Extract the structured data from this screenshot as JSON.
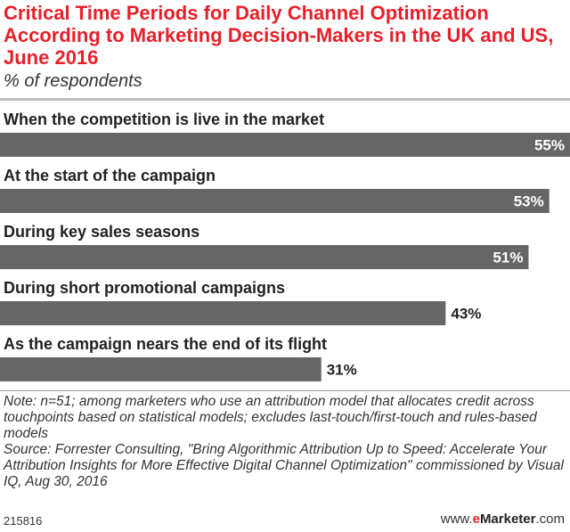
{
  "chart_data": {
    "type": "bar",
    "orientation": "horizontal",
    "title": "Critical Time Periods for Daily Channel Optimization According to Marketing Decision-Makers in the UK and US, June 2016",
    "subtitle": "% of respondents",
    "categories": [
      "When the competition is live in the market",
      "At the start of the campaign",
      "During key sales seasons",
      "During short promotional campaigns",
      "As the campaign nears the end of its flight"
    ],
    "values": [
      55,
      53,
      51,
      43,
      31
    ],
    "value_labels": [
      "55%",
      "53%",
      "51%",
      "43%",
      "31%"
    ],
    "xlim": [
      0,
      55
    ],
    "bar_color": "#666666",
    "grid": false,
    "legend": "none"
  },
  "note": {
    "note_text": "Note: n=51; among marketers who use an attribution model that allocates credit across touchpoints based on statistical models; excludes last-touch/first-touch and rules-based models",
    "source_text": "Source: Forrester Consulting, \"Bring Algorithmic Attribution Up to Speed: Accelerate Your Attribution Insights for More Effective Digital Channel Optimization\" commissioned by Visual IQ, Aug 30, 2016"
  },
  "footer": {
    "chart_id": "215816",
    "brand_prefix": "www.",
    "brand_e": "e",
    "brand_name": "Marketer",
    "brand_suffix": ".com"
  },
  "colors": {
    "title": "#e8202a",
    "bar": "#666666",
    "label_inside": "#ffffff",
    "label_outside": "#222222"
  }
}
